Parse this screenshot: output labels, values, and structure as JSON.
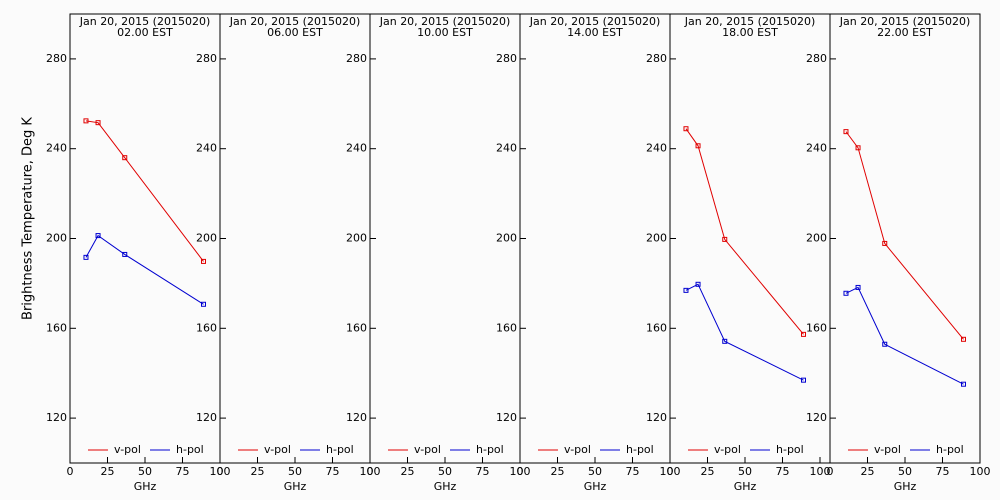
{
  "chart_data": [
    {
      "type": "line",
      "title": "Jan 20, 2015 (2015020)",
      "subtitle": "02.00 EST",
      "ylabel": "Brightness Temperature, Deg K",
      "xlabel": "GHz",
      "x": [
        10.65,
        18.7,
        36.5,
        89
      ],
      "series": [
        {
          "name": "v-pol",
          "color": "#e00000",
          "values": [
            252.4,
            251.6,
            236,
            189.8
          ]
        },
        {
          "name": "h-pol",
          "color": "#0000d0",
          "values": [
            191.6,
            201.3,
            192.9,
            170.7
          ]
        }
      ],
      "xlim": [
        0,
        100
      ],
      "xticks": [
        0,
        25,
        50,
        75,
        100
      ],
      "ylim": [
        100,
        300
      ],
      "yticks": [
        120,
        160,
        200,
        240,
        280
      ]
    },
    {
      "type": "line",
      "title": "Jan 20, 2015 (2015020)",
      "subtitle": "06.00 EST",
      "xlabel": "GHz",
      "x": [
        10.65,
        18.7,
        36.5,
        89
      ],
      "series": [
        {
          "name": "v-pol",
          "color": "#e00000",
          "values": [
            null,
            null,
            null,
            null
          ]
        },
        {
          "name": "h-pol",
          "color": "#0000d0",
          "values": [
            null,
            null,
            null,
            null
          ]
        }
      ],
      "xlim": [
        0,
        100
      ],
      "xticks": [
        0,
        25,
        50,
        75,
        100
      ],
      "ylim": [
        100,
        300
      ],
      "yticks": [
        120,
        160,
        200,
        240,
        280
      ]
    },
    {
      "type": "line",
      "title": "Jan 20, 2015 (2015020)",
      "subtitle": "10.00 EST",
      "xlabel": "GHz",
      "x": [
        10.65,
        18.7,
        36.5,
        89
      ],
      "series": [
        {
          "name": "v-pol",
          "color": "#e00000",
          "values": [
            null,
            null,
            null,
            null
          ]
        },
        {
          "name": "h-pol",
          "color": "#0000d0",
          "values": [
            null,
            null,
            null,
            null
          ]
        }
      ],
      "xlim": [
        0,
        100
      ],
      "xticks": [
        0,
        25,
        50,
        75,
        100
      ],
      "ylim": [
        100,
        300
      ],
      "yticks": [
        120,
        160,
        200,
        240,
        280
      ]
    },
    {
      "type": "line",
      "title": "Jan 20, 2015 (2015020)",
      "subtitle": "14.00 EST",
      "xlabel": "GHz",
      "x": [
        10.65,
        18.7,
        36.5,
        89
      ],
      "series": [
        {
          "name": "v-pol",
          "color": "#e00000",
          "values": [
            null,
            null,
            null,
            null
          ]
        },
        {
          "name": "h-pol",
          "color": "#0000d0",
          "values": [
            null,
            null,
            null,
            null
          ]
        }
      ],
      "xlim": [
        0,
        100
      ],
      "xticks": [
        0,
        25,
        50,
        75,
        100
      ],
      "ylim": [
        100,
        300
      ],
      "yticks": [
        120,
        160,
        200,
        240,
        280
      ]
    },
    {
      "type": "line",
      "title": "Jan 20, 2015 (2015020)",
      "subtitle": "18.00 EST",
      "xlabel": "GHz",
      "x": [
        10.65,
        18.7,
        36.5,
        89
      ],
      "series": [
        {
          "name": "v-pol",
          "color": "#e00000",
          "values": [
            248.9,
            241.3,
            199.6,
            157.3
          ]
        },
        {
          "name": "h-pol",
          "color": "#0000d0",
          "values": [
            176.9,
            179.6,
            154.2,
            136.9
          ]
        }
      ],
      "xlim": [
        0,
        100
      ],
      "xticks": [
        0,
        25,
        50,
        75,
        100
      ],
      "ylim": [
        100,
        300
      ],
      "yticks": [
        120,
        160,
        200,
        240,
        280
      ]
    },
    {
      "type": "line",
      "title": "Jan 20, 2015 (2015020)",
      "subtitle": "22.00 EST",
      "xlabel": "GHz",
      "x": [
        10.65,
        18.7,
        36.5,
        89
      ],
      "series": [
        {
          "name": "v-pol",
          "color": "#e00000",
          "values": [
            247.6,
            240.4,
            197.8,
            155.1
          ]
        },
        {
          "name": "h-pol",
          "color": "#0000d0",
          "values": [
            175.6,
            178.2,
            152.9,
            135.1
          ]
        }
      ],
      "xlim": [
        0,
        100
      ],
      "xticks": [
        0,
        25,
        50,
        75,
        100
      ],
      "ylim": [
        100,
        300
      ],
      "yticks": [
        120,
        160,
        200,
        240,
        280
      ]
    }
  ]
}
